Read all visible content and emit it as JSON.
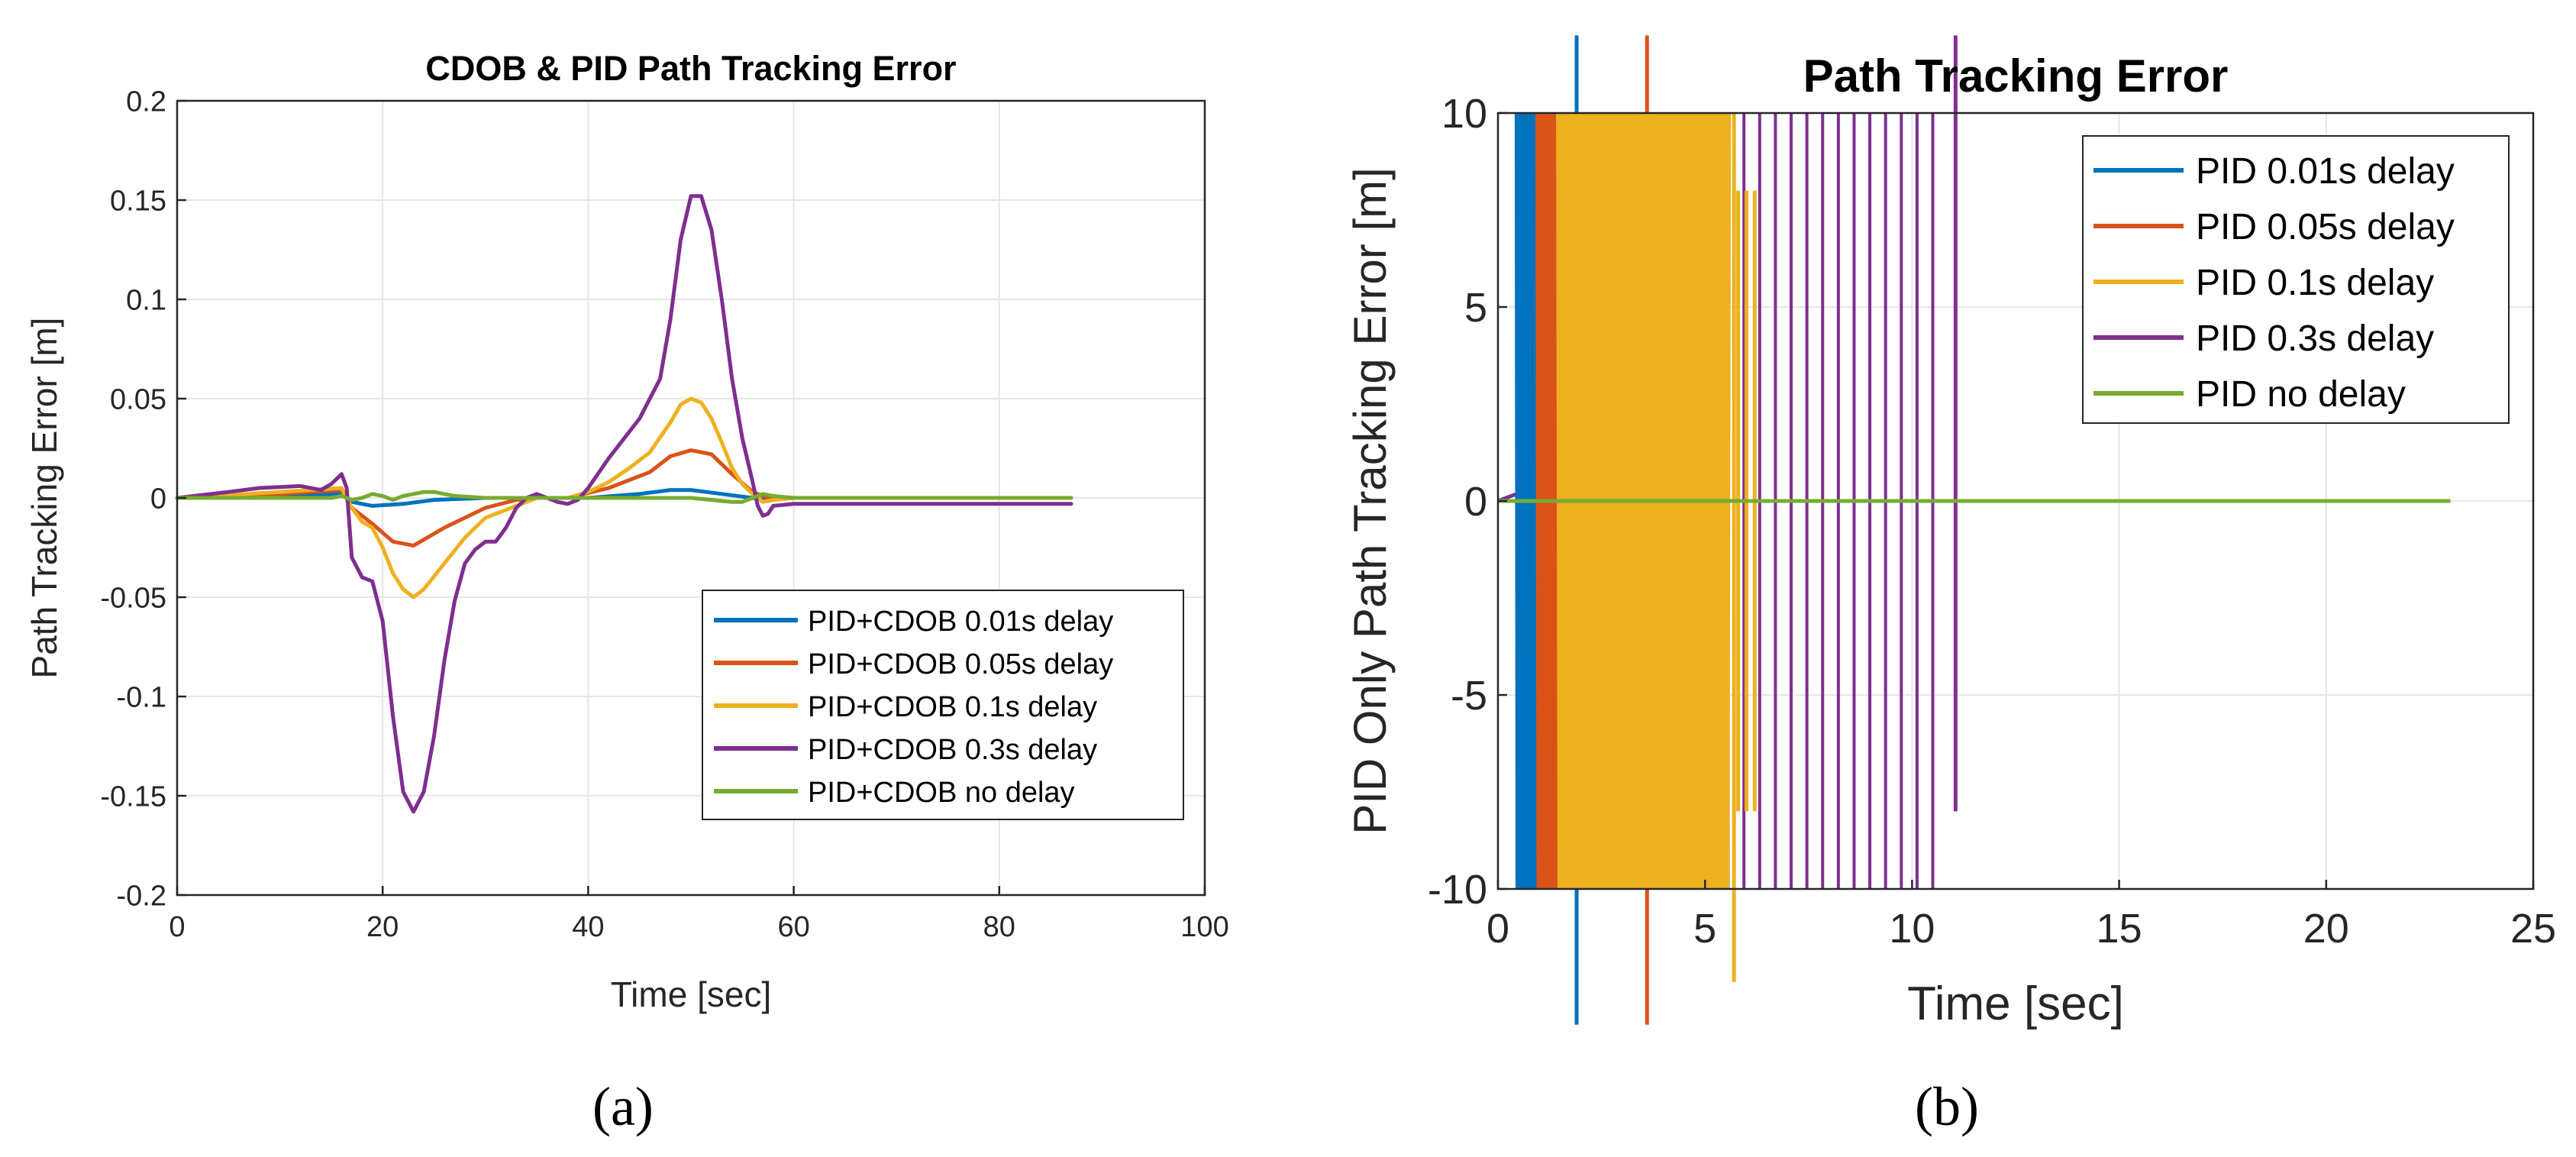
{
  "colors": {
    "blue": "#0072BD",
    "orange": "#D95319",
    "yellow": "#EDB120",
    "purple": "#7E2F8E",
    "green": "#77AC30",
    "grid": "#e6e6e6",
    "axis": "#262626"
  },
  "panel_labels": {
    "a": "(a)",
    "b": "(b)"
  },
  "chart_data": [
    {
      "type": "line",
      "title": "CDOB & PID Path Tracking Error",
      "xlabel": "Time [sec]",
      "ylabel": "Path Tracking Error [m]",
      "xlim": [
        0,
        100
      ],
      "ylim": [
        -0.2,
        0.2
      ],
      "xticks": [
        0,
        20,
        40,
        60,
        80,
        100
      ],
      "xtick_labels": [
        "0",
        "20",
        "40",
        "60",
        "80",
        "100"
      ],
      "yticks": [
        -0.2,
        -0.15,
        -0.1,
        -0.05,
        0,
        0.05,
        0.1,
        0.15,
        0.2
      ],
      "ytick_labels": [
        "-0.2",
        "-0.15",
        "-0.1",
        "-0.05",
        "0",
        "0.05",
        "0.1",
        "0.15",
        "0.2"
      ],
      "grid": true,
      "legend_position": "bottom-right",
      "series": [
        {
          "name": "PID+CDOB 0.01s delay",
          "color": "blue",
          "x": [
            0,
            10,
            16,
            17,
            19,
            22,
            25,
            30,
            35,
            40,
            45,
            48,
            50,
            53,
            56,
            57,
            60,
            87
          ],
          "y": [
            0,
            0.001,
            0.002,
            -0.002,
            -0.004,
            -0.003,
            -0.001,
            0,
            0,
            0,
            0.002,
            0.004,
            0.004,
            0.002,
            0,
            -0.001,
            0,
            0
          ]
        },
        {
          "name": "PID+CDOB 0.05s delay",
          "color": "orange",
          "x": [
            0,
            10,
            16,
            17,
            19,
            21,
            23,
            26,
            30,
            33,
            35,
            38,
            42,
            46,
            48,
            50,
            52,
            54,
            56,
            58,
            60,
            87
          ],
          "y": [
            0,
            0.002,
            0.004,
            -0.005,
            -0.013,
            -0.022,
            -0.024,
            -0.015,
            -0.005,
            -0.001,
            0,
            0,
            0.005,
            0.013,
            0.021,
            0.024,
            0.022,
            0.012,
            0.003,
            -0.001,
            0,
            0
          ]
        },
        {
          "name": "PID+CDOB 0.1s delay",
          "color": "yellow",
          "x": [
            0,
            10,
            16,
            17,
            18,
            19,
            20,
            21,
            22,
            23,
            24,
            26,
            28,
            30,
            33,
            35,
            38,
            40,
            42,
            44,
            46,
            48,
            49,
            50,
            51,
            52,
            53,
            54,
            55,
            56,
            57,
            58,
            60,
            87
          ],
          "y": [
            0,
            0.003,
            0.005,
            -0.005,
            -0.012,
            -0.015,
            -0.025,
            -0.038,
            -0.046,
            -0.05,
            -0.046,
            -0.033,
            -0.02,
            -0.01,
            -0.004,
            0,
            0,
            0.003,
            0.008,
            0.015,
            0.023,
            0.038,
            0.047,
            0.05,
            0.048,
            0.04,
            0.028,
            0.015,
            0.007,
            0.002,
            -0.002,
            -0.001,
            0,
            0
          ]
        },
        {
          "name": "PID+CDOB 0.3s delay",
          "color": "purple",
          "x": [
            0,
            5,
            8,
            12,
            14,
            15,
            16,
            16.5,
            17,
            18,
            19,
            20,
            21,
            22,
            23,
            24,
            25,
            26,
            27,
            28,
            29,
            30,
            31,
            32,
            33,
            34,
            35,
            37,
            38,
            39,
            40,
            42,
            45,
            47,
            48,
            49,
            50,
            51,
            52,
            53,
            54,
            55,
            56,
            56.5,
            57,
            57.5,
            58,
            60,
            65,
            87
          ],
          "y": [
            0,
            0.003,
            0.005,
            0.006,
            0.004,
            0.007,
            0.012,
            0.005,
            -0.03,
            -0.04,
            -0.042,
            -0.062,
            -0.11,
            -0.148,
            -0.158,
            -0.148,
            -0.12,
            -0.082,
            -0.052,
            -0.033,
            -0.026,
            -0.022,
            -0.022,
            -0.015,
            -0.005,
            0,
            0.002,
            -0.002,
            -0.003,
            -0.001,
            0.005,
            0.02,
            0.04,
            0.06,
            0.09,
            0.13,
            0.152,
            0.152,
            0.135,
            0.1,
            0.06,
            0.03,
            0.008,
            -0.004,
            -0.009,
            -0.008,
            -0.004,
            -0.003,
            -0.003,
            -0.003
          ]
        },
        {
          "name": "PID+CDOB no delay",
          "color": "green",
          "x": [
            0,
            10,
            15,
            16,
            17,
            18,
            19,
            20,
            21,
            22,
            23,
            24,
            25,
            27,
            30,
            35,
            38,
            40,
            42,
            44,
            46,
            48,
            50,
            52,
            54,
            55,
            56,
            57,
            58,
            60,
            87
          ],
          "y": [
            0,
            0,
            0,
            0.001,
            -0.001,
            0,
            0.002,
            0.001,
            -0.001,
            0.001,
            0.002,
            0.003,
            0.003,
            0.001,
            0,
            0,
            0,
            0,
            0,
            0,
            0,
            0,
            0,
            -0.001,
            -0.002,
            -0.002,
            0,
            0.002,
            0.001,
            0,
            0
          ]
        }
      ]
    },
    {
      "type": "line",
      "title": "Path Tracking Error",
      "xlabel": "Time [sec]",
      "ylabel": "PID Only Path Tracking Error [m]",
      "xlim": [
        0,
        25
      ],
      "ylim": [
        -10,
        10
      ],
      "xticks": [
        0,
        5,
        10,
        15,
        20,
        25
      ],
      "xtick_labels": [
        "0",
        "5",
        "10",
        "15",
        "20",
        "25"
      ],
      "yticks": [
        -10,
        -5,
        0,
        5,
        10
      ],
      "ytick_labels": [
        "-10",
        "-5",
        "0",
        "5",
        "10"
      ],
      "grid": true,
      "legend_position": "top-right",
      "series": [
        {
          "name": "PID 0.01s delay",
          "color": "blue",
          "oscillation": {
            "t_start": 0.45,
            "t_end": 0.95,
            "period": 0.04,
            "amplitude": 10
          },
          "spikes": [
            {
              "t": 1.9,
              "y_low": -13.5,
              "y_high": 12
            }
          ]
        },
        {
          "name": "PID 0.05s delay",
          "color": "orange",
          "oscillation": {
            "t_start": 0.95,
            "t_end": 1.45,
            "period": 0.05,
            "amplitude": 10
          },
          "spikes": [
            {
              "t": 3.6,
              "y_low": -13.5,
              "y_high": 12
            }
          ]
        },
        {
          "name": "PID 0.1s delay",
          "color": "yellow",
          "oscillation": {
            "t_start": 1.45,
            "t_end": 5.6,
            "period": 0.07,
            "amplitude": 10
          },
          "spikes": [
            {
              "t": 5.7,
              "y_low": -12.4,
              "y_high": 10
            }
          ],
          "tail_lines": [
            {
              "t": 5.8,
              "y_low": -8,
              "y_high": 8
            },
            {
              "t": 6.0,
              "y_low": -8,
              "y_high": 8
            },
            {
              "t": 6.2,
              "y_low": -8,
              "y_high": 8
            }
          ]
        },
        {
          "name": "PID 0.3s delay",
          "color": "purple",
          "x": [
            0,
            0.5,
            1,
            1.5,
            1.8,
            1.95,
            2.1,
            2.3,
            2.5,
            2.8,
            3.0
          ],
          "y": [
            0,
            0.2,
            0.5,
            0.9,
            0.6,
            -0.5,
            -3,
            -6.2,
            -3,
            -1,
            0
          ],
          "vertical_lines": {
            "t_start": 2.9,
            "t_end": 10.8,
            "spacing": 0.38,
            "y_low": -10,
            "y_high": 10
          },
          "spikes": [
            {
              "t": 11.05,
              "y_low": -8,
              "y_high": 12
            }
          ]
        },
        {
          "name": "PID no delay",
          "color": "green",
          "x": [
            0,
            23
          ],
          "y": [
            0,
            0
          ]
        }
      ]
    }
  ]
}
